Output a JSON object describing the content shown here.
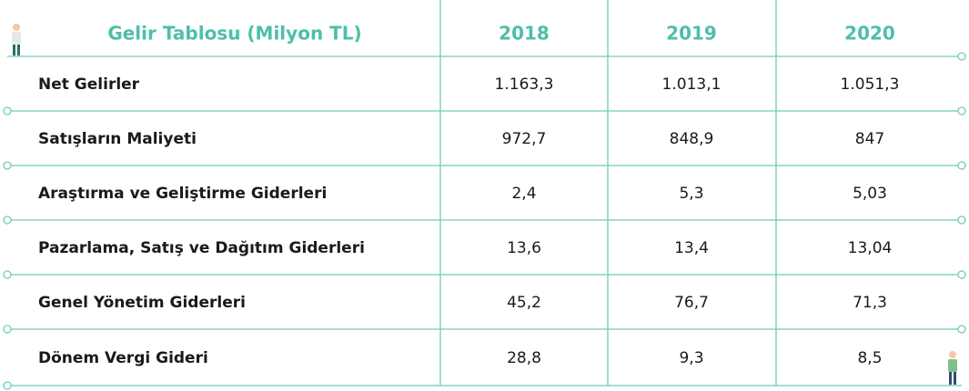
{
  "table": {
    "header": [
      "Gelir Tablosu (Milyon TL)",
      "2018",
      "2019",
      "2020"
    ],
    "rows": [
      [
        "Net Gelirler",
        "1.163,3",
        "1.013,1",
        "1.051,3"
      ],
      [
        "Satışların Maliyeti",
        "972,7",
        "848,9",
        "847"
      ],
      [
        "Araştırma ve Geliştirme Giderleri",
        "2,4",
        "5,3",
        "5,03"
      ],
      [
        "Pazarlama, Satış ve Dağıtım Giderleri",
        "13,6",
        "13,4",
        "13,04"
      ],
      [
        "Genel Yönetim Giderleri",
        "45,2",
        "76,7",
        "71,3"
      ],
      [
        "Dönem Vergi Gideri",
        "28,8",
        "9,3",
        "8,5"
      ]
    ]
  }
}
